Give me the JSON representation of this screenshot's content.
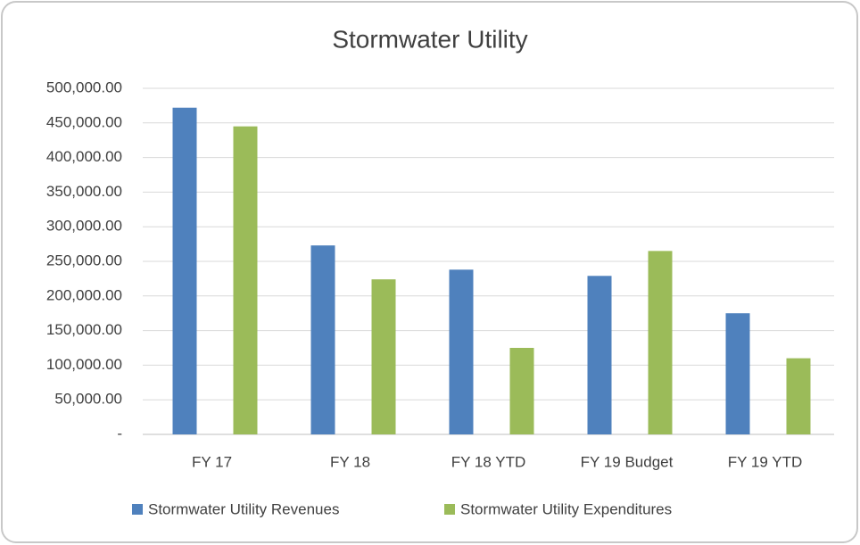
{
  "chart_data": {
    "type": "bar",
    "title": "Stormwater Utility",
    "categories": [
      "FY 17",
      "FY 18",
      "FY 18 YTD",
      "FY 19 Budget",
      "FY 19 YTD"
    ],
    "series": [
      {
        "name": "Stormwater Utility Revenues",
        "color": "#4f81bd",
        "values": [
          472000,
          273000,
          238000,
          229000,
          175000
        ]
      },
      {
        "name": "Stormwater Utility Expenditures",
        "color": "#9bbb59",
        "values": [
          445000,
          224000,
          125000,
          265000,
          110000
        ]
      }
    ],
    "ylim": [
      0,
      500000
    ],
    "yticks": [
      {
        "value": 0,
        "label": "-"
      },
      {
        "value": 50000,
        "label": "50,000.00"
      },
      {
        "value": 100000,
        "label": "100,000.00"
      },
      {
        "value": 150000,
        "label": "150,000.00"
      },
      {
        "value": 200000,
        "label": "200,000.00"
      },
      {
        "value": 250000,
        "label": "250,000.00"
      },
      {
        "value": 300000,
        "label": "300,000.00"
      },
      {
        "value": 350000,
        "label": "350,000.00"
      },
      {
        "value": 400000,
        "label": "400,000.00"
      },
      {
        "value": 450000,
        "label": "450,000.00"
      },
      {
        "value": 500000,
        "label": "500,000.00"
      }
    ],
    "grid": true,
    "legend": "bottom"
  }
}
